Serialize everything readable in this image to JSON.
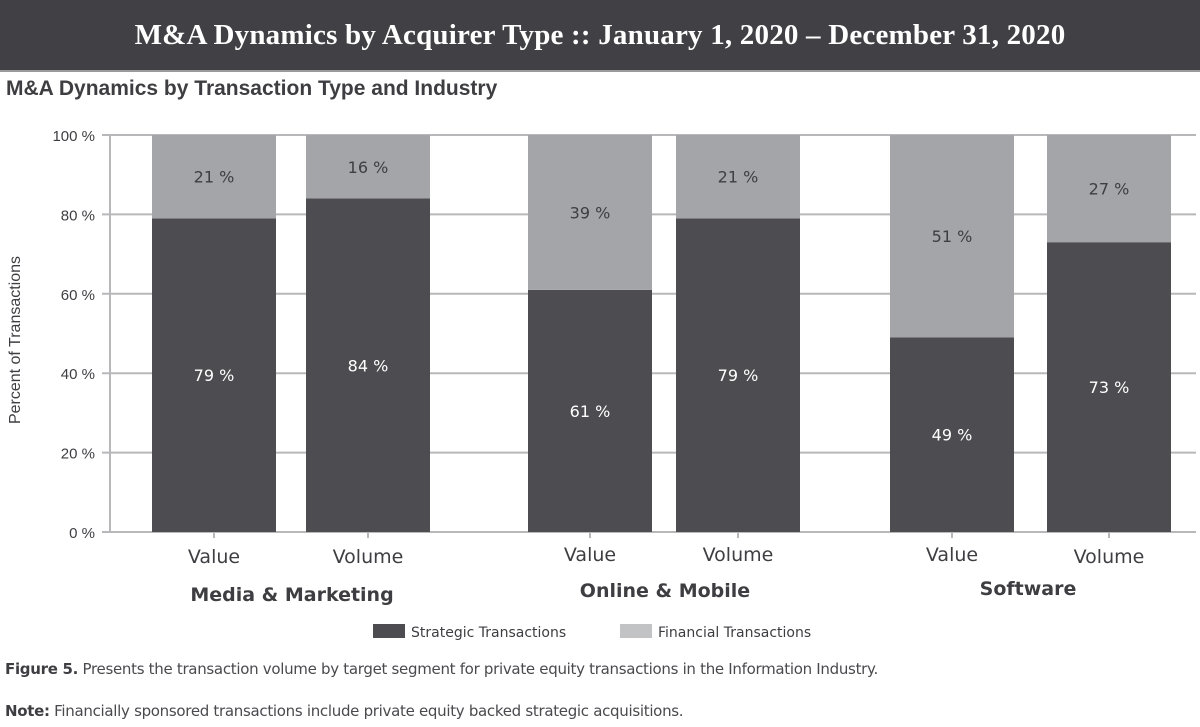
{
  "header": {
    "title": "M&A Dynamics by Acquirer Type :: January 1, 2020 – December 31, 2020"
  },
  "chart_title": "M&A Dynamics by Transaction Type and Industry",
  "colors": {
    "strategic": "#4d4c50",
    "financial": "#a4a5a8",
    "banner": "#414045",
    "grid": "#b8b8ba"
  },
  "chart_data": {
    "type": "bar",
    "stacked": true,
    "title": "M&A Dynamics by Transaction Type and Industry",
    "ylabel": "Percent of Transactions",
    "xlabel": "",
    "ylim": [
      0,
      100
    ],
    "yticks": [
      0,
      20,
      40,
      60,
      80,
      100
    ],
    "ytick_labels": [
      "0 %",
      "20 %",
      "40 %",
      "60 %",
      "80 %",
      "100 %"
    ],
    "grid": true,
    "groups": [
      {
        "name": "Media & Marketing",
        "categories": [
          "Value",
          "Volume"
        ]
      },
      {
        "name": "Online & Mobile",
        "categories": [
          "Value",
          "Volume"
        ]
      },
      {
        "name": "Software",
        "categories": [
          "Value",
          "Volume"
        ]
      }
    ],
    "categories": [
      "Value",
      "Volume",
      "Value",
      "Volume",
      "Value",
      "Volume"
    ],
    "series": [
      {
        "name": "Strategic Transactions",
        "values": [
          79,
          84,
          61,
          79,
          49,
          73
        ],
        "labels": [
          "79 %",
          "84 %",
          "61 %",
          "79 %",
          "49 %",
          "73 %"
        ]
      },
      {
        "name": "Financial Transactions",
        "values": [
          21,
          16,
          39,
          21,
          51,
          27
        ],
        "labels": [
          "21 %",
          "16 %",
          "39 %",
          "21 %",
          "51 %",
          "27 %"
        ]
      }
    ],
    "legend": {
      "position": "bottom",
      "entries": [
        "Strategic Transactions",
        "Financial Transactions"
      ]
    }
  },
  "footer": {
    "figure_label": "Figure 5.",
    "figure_text": " Presents the transaction volume by target segment for private equity transactions in the Information Industry.",
    "note_label": "Note:",
    "note_text": " Financially sponsored transactions include private equity backed strategic acquisitions."
  }
}
